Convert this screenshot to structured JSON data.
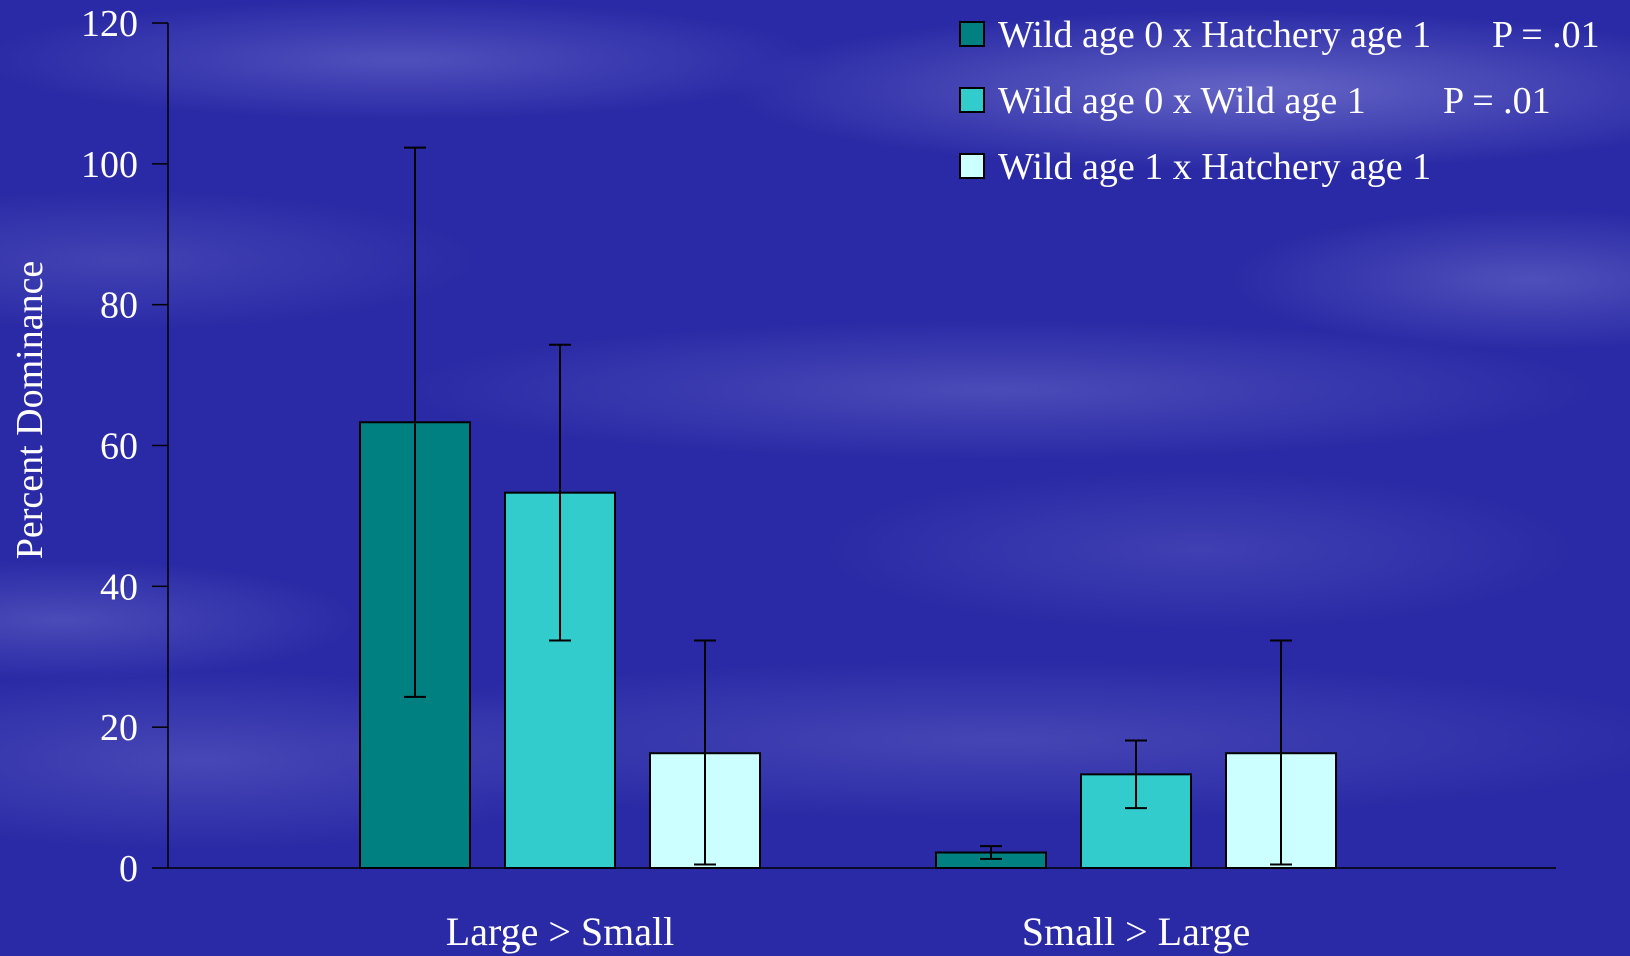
{
  "chart_data": {
    "type": "bar",
    "ylabel": "Percent Dominance",
    "xlabel": "",
    "ylim": [
      0,
      120
    ],
    "yticks": [
      0,
      20,
      40,
      60,
      80,
      100,
      120
    ],
    "categories": [
      "Large > Small",
      "Small > Large"
    ],
    "series": [
      {
        "name": "Wild age 0 x Hatchery age 1",
        "p_value": "P = .01",
        "color": "#008080",
        "values": [
          63.3,
          2.2
        ],
        "error": [
          39,
          0.9
        ]
      },
      {
        "name": "Wild age 0 x Wild age 1",
        "p_value": "P = .01",
        "color": "#33CCCC",
        "values": [
          53.3,
          13.3
        ],
        "error": [
          21,
          4.8
        ]
      },
      {
        "name": "Wild age 1 x Hatchery age 1",
        "p_value": "",
        "color": "#CCFFFF",
        "values": [
          16.3,
          16.3
        ],
        "error": [
          16,
          16
        ]
      }
    ],
    "grid": false,
    "legend_position": "top-right"
  }
}
